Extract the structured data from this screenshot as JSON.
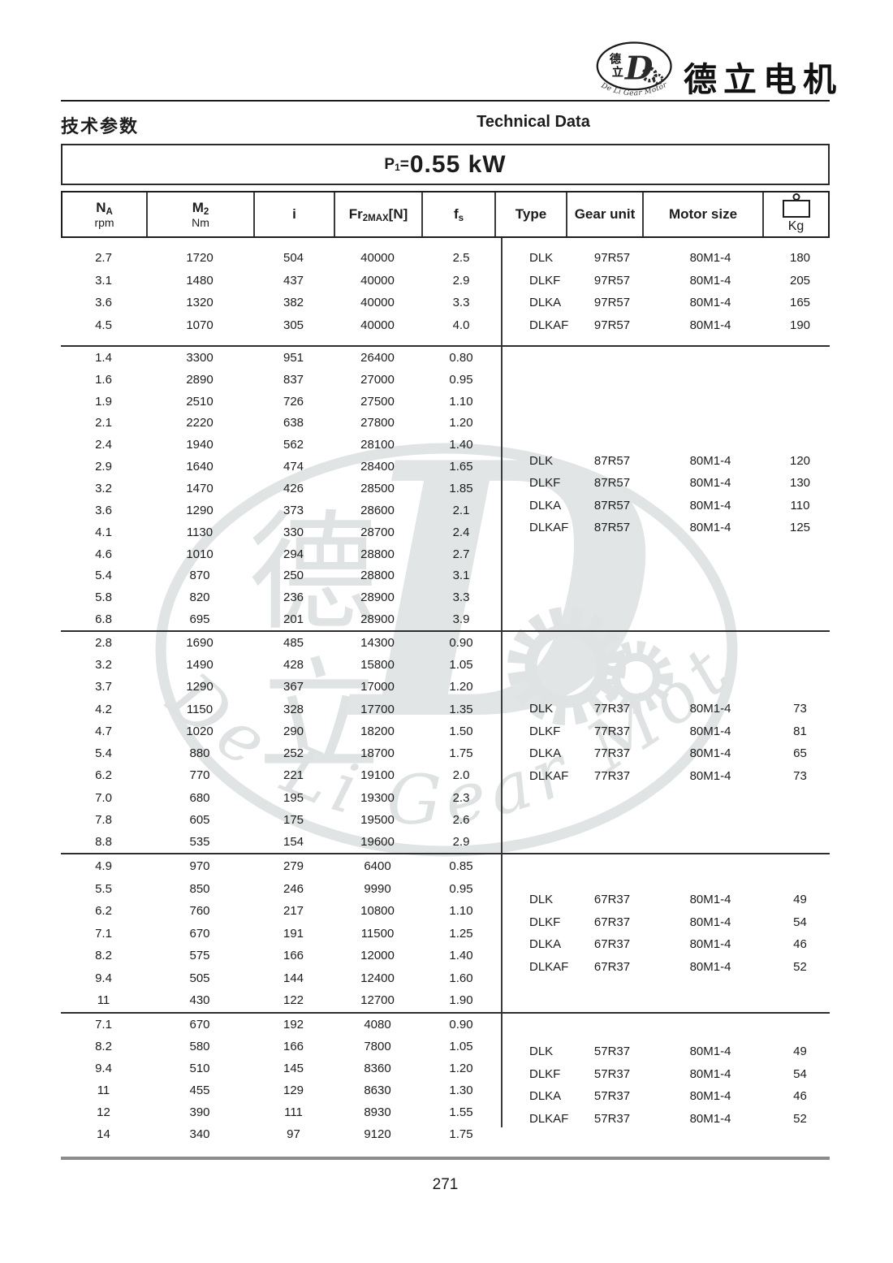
{
  "brand": {
    "logo_char_top": "德",
    "logo_char_bottom": "立",
    "logo_letter": "D",
    "logo_arc_text": "De Li Gear Motor",
    "company_name": "德立电机"
  },
  "titles": {
    "cn": "技术参数",
    "en": "Technical Data"
  },
  "power": {
    "prefix": "P",
    "sub": "1",
    "eq": "=",
    "value": "0.55 kW"
  },
  "table_header": {
    "na_main": "N",
    "na_sub": "A",
    "na_unit": "rpm",
    "m2_main": "M",
    "m2_sub": "2",
    "m2_unit": "Nm",
    "i": "i",
    "fr_main": "Fr",
    "fr_sub": "2MAX",
    "fr_tail": "[N]",
    "fs_main": "f",
    "fs_sub": "s",
    "type": "Type",
    "gear_unit": "Gear unit",
    "motor_size": "Motor size",
    "kg": "Kg",
    "kg_icon": "weight-icon"
  },
  "sections": [
    {
      "rows": [
        [
          "2.7",
          "1720",
          "504",
          "40000",
          "2.5"
        ],
        [
          "3.1",
          "1480",
          "437",
          "40000",
          "2.9"
        ],
        [
          "3.6",
          "1320",
          "382",
          "40000",
          "3.3"
        ],
        [
          "4.5",
          "1070",
          "305",
          "40000",
          "4.0"
        ]
      ],
      "models": [
        [
          "DLK",
          "97R57",
          "80M1-4",
          "180"
        ],
        [
          "DLKF",
          "97R57",
          "80M1-4",
          "205"
        ],
        [
          "DLKA",
          "97R57",
          "80M1-4",
          "165"
        ],
        [
          "DLKAF",
          "97R57",
          "80M1-4",
          "190"
        ]
      ]
    },
    {
      "rows": [
        [
          "1.4",
          "3300",
          "951",
          "26400",
          "0.80"
        ],
        [
          "1.6",
          "2890",
          "837",
          "27000",
          "0.95"
        ],
        [
          "1.9",
          "2510",
          "726",
          "27500",
          "1.10"
        ],
        [
          "2.1",
          "2220",
          "638",
          "27800",
          "1.20"
        ],
        [
          "2.4",
          "1940",
          "562",
          "28100",
          "1.40"
        ],
        [
          "2.9",
          "1640",
          "474",
          "28400",
          "1.65"
        ],
        [
          "3.2",
          "1470",
          "426",
          "28500",
          "1.85"
        ],
        [
          "3.6",
          "1290",
          "373",
          "28600",
          "2.1"
        ],
        [
          "4.1",
          "1130",
          "330",
          "28700",
          "2.4"
        ],
        [
          "4.6",
          "1010",
          "294",
          "28800",
          "2.7"
        ],
        [
          "5.4",
          "870",
          "250",
          "28800",
          "3.1"
        ],
        [
          "5.8",
          "820",
          "236",
          "28900",
          "3.3"
        ],
        [
          "6.8",
          "695",
          "201",
          "28900",
          "3.9"
        ]
      ],
      "models": [
        [
          "DLK",
          "87R57",
          "80M1-4",
          "120"
        ],
        [
          "DLKF",
          "87R57",
          "80M1-4",
          "130"
        ],
        [
          "DLKA",
          "87R57",
          "80M1-4",
          "110"
        ],
        [
          "DLKAF",
          "87R57",
          "80M1-4",
          "125"
        ]
      ]
    },
    {
      "rows": [
        [
          "2.8",
          "1690",
          "485",
          "14300",
          "0.90"
        ],
        [
          "3.2",
          "1490",
          "428",
          "15800",
          "1.05"
        ],
        [
          "3.7",
          "1290",
          "367",
          "17000",
          "1.20"
        ],
        [
          "4.2",
          "1150",
          "328",
          "17700",
          "1.35"
        ],
        [
          "4.7",
          "1020",
          "290",
          "18200",
          "1.50"
        ],
        [
          "5.4",
          "880",
          "252",
          "18700",
          "1.75"
        ],
        [
          "6.2",
          "770",
          "221",
          "19100",
          "2.0"
        ],
        [
          "7.0",
          "680",
          "195",
          "19300",
          "2.3"
        ],
        [
          "7.8",
          "605",
          "175",
          "19500",
          "2.6"
        ],
        [
          "8.8",
          "535",
          "154",
          "19600",
          "2.9"
        ]
      ],
      "models": [
        [
          "DLK",
          "77R37",
          "80M1-4",
          "73"
        ],
        [
          "DLKF",
          "77R37",
          "80M1-4",
          "81"
        ],
        [
          "DLKA",
          "77R37",
          "80M1-4",
          "65"
        ],
        [
          "DLKAF",
          "77R37",
          "80M1-4",
          "73"
        ]
      ]
    },
    {
      "rows": [
        [
          "4.9",
          "970",
          "279",
          "6400",
          "0.85"
        ],
        [
          "5.5",
          "850",
          "246",
          "9990",
          "0.95"
        ],
        [
          "6.2",
          "760",
          "217",
          "10800",
          "1.10"
        ],
        [
          "7.1",
          "670",
          "191",
          "11500",
          "1.25"
        ],
        [
          "8.2",
          "575",
          "166",
          "12000",
          "1.40"
        ],
        [
          "9.4",
          "505",
          "144",
          "12400",
          "1.60"
        ],
        [
          "11",
          "430",
          "122",
          "12700",
          "1.90"
        ]
      ],
      "models": [
        [
          "DLK",
          "67R37",
          "80M1-4",
          "49"
        ],
        [
          "DLKF",
          "67R37",
          "80M1-4",
          "54"
        ],
        [
          "DLKA",
          "67R37",
          "80M1-4",
          "46"
        ],
        [
          "DLKAF",
          "67R37",
          "80M1-4",
          "52"
        ]
      ]
    },
    {
      "rows": [
        [
          "7.1",
          "670",
          "192",
          "4080",
          "0.90"
        ],
        [
          "8.2",
          "580",
          "166",
          "7800",
          "1.05"
        ],
        [
          "9.4",
          "510",
          "145",
          "8360",
          "1.20"
        ],
        [
          "11",
          "455",
          "129",
          "8630",
          "1.30"
        ],
        [
          "12",
          "390",
          "111",
          "8930",
          "1.55"
        ],
        [
          "14",
          "340",
          "97",
          "9120",
          "1.75"
        ]
      ],
      "models": [
        [
          "DLK",
          "57R37",
          "80M1-4",
          "49"
        ],
        [
          "DLKF",
          "57R37",
          "80M1-4",
          "54"
        ],
        [
          "DLKA",
          "57R37",
          "80M1-4",
          "46"
        ],
        [
          "DLKAF",
          "57R37",
          "80M1-4",
          "52"
        ]
      ]
    }
  ],
  "watermark": {
    "char_top": "德",
    "char_bottom": "立",
    "letter": "D",
    "arc_text": "De Li Gear Motor"
  },
  "page_number": "271",
  "colors": {
    "text": "#1c1c1c",
    "rule": "#1a1a1a",
    "thick_rule": "#8c8c8c",
    "watermark": "#e0e3e3"
  }
}
